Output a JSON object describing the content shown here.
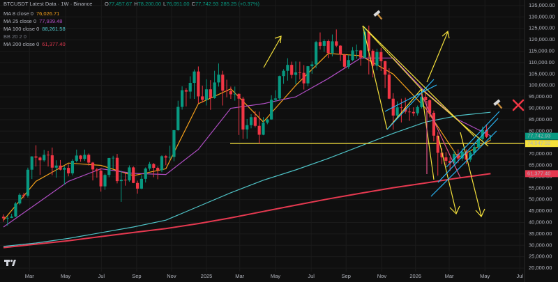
{
  "chart_data": {
    "type": "candlestick",
    "title": "BTCUSDT Latest Data · 1W · Binance",
    "ohlc_legend": [
      {
        "key": "O",
        "label": "77,457.67"
      },
      {
        "key": "H",
        "label": "78,200.00"
      },
      {
        "key": "L",
        "label": "76,051.00"
      },
      {
        "key": "C",
        "label": "77,742.93"
      }
    ],
    "change_label": "285.25 (+0.37%)",
    "bb_label": "BB 20 2 0",
    "up_color": "#089981",
    "down_color": "#f23645",
    "ylim": [
      18500,
      137400
    ],
    "yticks": [
      {
        "value": 20000,
        "label": "20,000.00"
      },
      {
        "value": 25000,
        "label": "25,000.00"
      },
      {
        "value": 30000,
        "label": "30,000.00"
      },
      {
        "value": 35000,
        "label": "35,000.00"
      },
      {
        "value": 40000,
        "label": "40,000.00"
      },
      {
        "value": 45000,
        "label": "45,000.00"
      },
      {
        "value": 50000,
        "label": "50,000.00"
      },
      {
        "value": 55000,
        "label": "55,000.00"
      },
      {
        "value": 60000,
        "label": "60,000.00"
      },
      {
        "value": 65000,
        "label": "65,000.00"
      },
      {
        "value": 70000,
        "label": "70,000.00"
      },
      {
        "value": 75000,
        "label": "75,000.00"
      },
      {
        "value": 80000,
        "label": "80,000.00"
      },
      {
        "value": 85000,
        "label": "85,000.00"
      },
      {
        "value": 90000,
        "label": "90,000.00"
      },
      {
        "value": 95000,
        "label": "95,000.00"
      },
      {
        "value": 100000,
        "label": "100,000.00"
      },
      {
        "value": 105000,
        "label": "105,000.00"
      },
      {
        "value": 110000,
        "label": "110,000.00"
      },
      {
        "value": 115000,
        "label": "115,000.00"
      },
      {
        "value": 120000,
        "label": "120,000.00"
      },
      {
        "value": 125000,
        "label": "125,000.00"
      },
      {
        "value": 130000,
        "label": "130,000.00"
      },
      {
        "value": 135000,
        "label": "135,000.00"
      }
    ],
    "xlim": [
      -0.86,
      128.35
    ],
    "xticks": [
      {
        "value": 6.4,
        "label": "Mar"
      },
      {
        "value": 15.3,
        "label": "May"
      },
      {
        "value": 24.1,
        "label": "Jul"
      },
      {
        "value": 32.8,
        "label": "Sep"
      },
      {
        "value": 41.4,
        "label": "Nov"
      },
      {
        "value": 50.0,
        "label": "2025"
      },
      {
        "value": 58.2,
        "label": "Mar"
      },
      {
        "value": 67.0,
        "label": "May"
      },
      {
        "value": 75.8,
        "label": "Jul"
      },
      {
        "value": 84.4,
        "label": "Sep"
      },
      {
        "value": 93.2,
        "label": "Nov"
      },
      {
        "value": 101.5,
        "label": "2026"
      },
      {
        "value": 109.8,
        "label": "Mar"
      },
      {
        "value": 118.6,
        "label": "May"
      },
      {
        "value": 127.2,
        "label": "Jul"
      }
    ],
    "grid": true,
    "ohlc": [
      [
        42500,
        43500,
        40300,
        41800
      ],
      [
        41800,
        42800,
        38600,
        42000
      ],
      [
        42000,
        43800,
        41900,
        42600
      ],
      [
        42600,
        48900,
        42300,
        48300
      ],
      [
        48300,
        52800,
        47700,
        52100
      ],
      [
        52100,
        53000,
        50600,
        51700
      ],
      [
        51700,
        64000,
        50900,
        63100
      ],
      [
        63100,
        69000,
        59000,
        68900
      ],
      [
        68900,
        73800,
        64500,
        68400
      ],
      [
        68400,
        68900,
        60800,
        67200
      ],
      [
        67200,
        71800,
        66600,
        69600
      ],
      [
        69600,
        71300,
        64500,
        69400
      ],
      [
        69400,
        72800,
        60700,
        64000
      ],
      [
        64000,
        67200,
        59600,
        64900
      ],
      [
        64900,
        67300,
        62800,
        63100
      ],
      [
        63100,
        64700,
        56600,
        63900
      ],
      [
        63900,
        65500,
        60200,
        61500
      ],
      [
        61500,
        67700,
        60600,
        67000
      ],
      [
        67000,
        71900,
        66300,
        69300
      ],
      [
        69300,
        69500,
        66600,
        67800
      ],
      [
        67800,
        71900,
        66900,
        69600
      ],
      [
        69600,
        70200,
        64900,
        66200
      ],
      [
        66200,
        66500,
        58400,
        63200
      ],
      [
        63200,
        63800,
        59600,
        62700
      ],
      [
        62700,
        63800,
        53500,
        55800
      ],
      [
        55800,
        61400,
        54300,
        60800
      ],
      [
        60800,
        68300,
        59800,
        68200
      ],
      [
        68200,
        69200,
        63500,
        68300
      ],
      [
        68300,
        70000,
        57100,
        58100
      ],
      [
        58100,
        62700,
        49000,
        58700
      ],
      [
        58700,
        61800,
        56100,
        58400
      ],
      [
        58400,
        65000,
        57800,
        64100
      ],
      [
        64100,
        64500,
        57200,
        57300
      ],
      [
        57300,
        58300,
        52600,
        54800
      ],
      [
        54800,
        60700,
        54600,
        59100
      ],
      [
        59100,
        64100,
        57500,
        63600
      ],
      [
        63600,
        66500,
        62700,
        65600
      ],
      [
        65600,
        66000,
        59800,
        63900
      ],
      [
        63900,
        64500,
        58900,
        62900
      ],
      [
        62900,
        69400,
        62000,
        69000
      ],
      [
        69000,
        69500,
        65100,
        68400
      ],
      [
        68400,
        73600,
        67500,
        68700
      ],
      [
        68700,
        80500,
        66800,
        80400
      ],
      [
        80400,
        93300,
        80200,
        90600
      ],
      [
        90600,
        99600,
        89400,
        97900
      ],
      [
        97900,
        98800,
        90800,
        97300
      ],
      [
        97300,
        104000,
        94200,
        101100
      ],
      [
        101100,
        107000,
        94100,
        106100
      ],
      [
        106100,
        108300,
        92200,
        95200
      ],
      [
        95200,
        99900,
        92500,
        93700
      ],
      [
        93700,
        102700,
        91200,
        98300
      ],
      [
        98300,
        102300,
        89300,
        94500
      ],
      [
        94500,
        106400,
        94200,
        101300
      ],
      [
        101300,
        109600,
        99500,
        104700
      ],
      [
        104700,
        106400,
        91200,
        97700
      ],
      [
        97700,
        102500,
        94800,
        97500
      ],
      [
        97500,
        99500,
        94100,
        96100
      ],
      [
        96100,
        99500,
        93300,
        96300
      ],
      [
        96300,
        96500,
        78300,
        94200
      ],
      [
        94200,
        95000,
        76600,
        80700
      ],
      [
        80700,
        85300,
        76600,
        82600
      ],
      [
        82600,
        87400,
        81200,
        86100
      ],
      [
        86100,
        88800,
        81600,
        82300
      ],
      [
        82300,
        88500,
        74500,
        78400
      ],
      [
        78400,
        86100,
        78200,
        83700
      ],
      [
        83700,
        85500,
        83000,
        85100
      ],
      [
        85100,
        95700,
        85000,
        93700
      ],
      [
        93700,
        97900,
        92800,
        94300
      ],
      [
        94300,
        104300,
        93400,
        104100
      ],
      [
        104100,
        107100,
        100700,
        106400
      ],
      [
        106400,
        111900,
        102100,
        109000
      ],
      [
        109000,
        110400,
        103100,
        104600
      ],
      [
        104600,
        110500,
        100400,
        105700
      ],
      [
        105700,
        110400,
        102600,
        105500
      ],
      [
        105500,
        108900,
        98200,
        100900
      ],
      [
        100900,
        108500,
        99600,
        108400
      ],
      [
        108400,
        110500,
        105100,
        109200
      ],
      [
        109200,
        119500,
        107500,
        119000
      ],
      [
        119000,
        123200,
        115700,
        117300
      ],
      [
        117300,
        120200,
        114700,
        119400
      ],
      [
        119400,
        120100,
        112000,
        114200
      ],
      [
        114200,
        122300,
        112700,
        119300
      ],
      [
        119300,
        124500,
        116800,
        117400
      ],
      [
        117400,
        117600,
        110700,
        113500
      ],
      [
        113500,
        113800,
        107300,
        108200
      ],
      [
        108200,
        113400,
        107300,
        111100
      ],
      [
        111100,
        116800,
        110600,
        115300
      ],
      [
        115300,
        117900,
        111700,
        115300
      ],
      [
        115300,
        115500,
        108600,
        112200
      ],
      [
        112200,
        125700,
        111900,
        123500
      ],
      [
        123500,
        126200,
        104800,
        115200
      ],
      [
        115200,
        115900,
        103500,
        108600
      ],
      [
        108600,
        116100,
        106600,
        114600
      ],
      [
        114600,
        116400,
        106300,
        110600
      ],
      [
        110600,
        110800,
        98900,
        104700
      ],
      [
        104700,
        107500,
        94000,
        94200
      ],
      [
        94200,
        96600,
        80600,
        86800
      ],
      [
        86800,
        93000,
        86100,
        90400
      ],
      [
        90400,
        94200,
        83800,
        90200
      ],
      [
        90200,
        94600,
        87600,
        88500
      ],
      [
        88500,
        90300,
        84500,
        88400
      ],
      [
        88400,
        90400,
        86500,
        87800
      ],
      [
        87800,
        91200,
        86800,
        90500
      ],
      [
        90500,
        95600,
        89900,
        95000
      ],
      [
        95000,
        97900,
        92400,
        93500
      ],
      [
        93500,
        94000,
        86000,
        88000
      ],
      [
        88000,
        89000,
        75500,
        78000
      ],
      [
        78000,
        79500,
        60500,
        70500
      ],
      [
        70500,
        72500,
        65500,
        68500
      ],
      [
        68500,
        70800,
        65000,
        67000
      ],
      [
        67000,
        68500,
        62500,
        66000
      ],
      [
        66000,
        71500,
        64500,
        70000
      ],
      [
        70000,
        72000,
        66000,
        68000
      ],
      [
        68000,
        72500,
        67000,
        71000
      ],
      [
        71000,
        72000,
        65500,
        67500
      ],
      [
        67500,
        71500,
        66500,
        70500
      ],
      [
        70500,
        74500,
        69500,
        73000
      ],
      [
        73000,
        77500,
        72000,
        76500
      ],
      [
        76500,
        82000,
        75500,
        80500
      ],
      [
        80500,
        83000,
        77000,
        77457.67
      ],
      [
        77457.67,
        78200,
        76051,
        77742.93
      ]
    ],
    "last_price_label": "77,742.93",
    "hline": {
      "value": 74547.92,
      "label": "74,547.92",
      "color": "#f5e13c"
    },
    "series": [
      {
        "name": "MA 8 close 0",
        "color": "#f7a21b",
        "value_label": "76,026.71",
        "x": [
          0,
          8,
          16,
          24,
          32,
          40,
          48,
          56,
          64,
          72,
          80,
          88,
          96,
          104,
          112,
          120
        ],
        "values": [
          41000,
          58000,
          66000,
          65000,
          60500,
          63500,
          92000,
          98500,
          84000,
          100000,
          114000,
          113000,
          105000,
          90000,
          68500,
          76026.71
        ]
      },
      {
        "name": "MA 25 close 0",
        "color": "#b04ec4",
        "value_label": "77,939.48",
        "x": [
          0,
          8,
          16,
          24,
          32,
          40,
          48,
          56,
          64,
          72,
          80,
          88,
          96,
          104,
          112,
          120
        ],
        "values": [
          38000,
          48000,
          58000,
          63500,
          61500,
          61000,
          72000,
          90000,
          92000,
          95000,
          103000,
          112000,
          112000,
          97000,
          85000,
          77939.48
        ]
      },
      {
        "name": "MA 100 close 0",
        "color": "#4fc3c7",
        "value_label": "88,261.58",
        "x": [
          0,
          8,
          16,
          24,
          32,
          40,
          48,
          56,
          64,
          72,
          80,
          88,
          96,
          104,
          112,
          120
        ],
        "values": [
          29500,
          31000,
          33000,
          35500,
          38000,
          41000,
          47000,
          53000,
          58500,
          63000,
          68000,
          73500,
          79000,
          84000,
          86800,
          88261.58
        ]
      },
      {
        "name": "MA 200 close 0",
        "color": "#e53950",
        "value_label": "61,377.40",
        "x": [
          0,
          8,
          16,
          24,
          32,
          40,
          48,
          56,
          64,
          72,
          80,
          88,
          96,
          104,
          112,
          120
        ],
        "values": [
          29000,
          30500,
          32000,
          33800,
          35600,
          37300,
          39500,
          42000,
          44800,
          47600,
          50300,
          52800,
          55200,
          57300,
          59400,
          61377.4
        ]
      }
    ]
  }
}
